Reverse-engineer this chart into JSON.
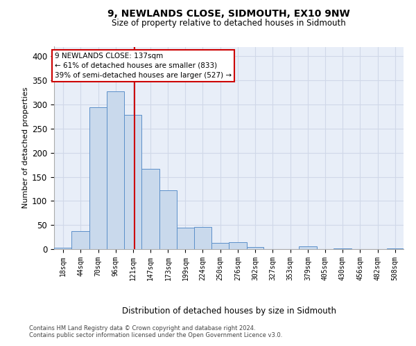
{
  "title": "9, NEWLANDS CLOSE, SIDMOUTH, EX10 9NW",
  "subtitle": "Size of property relative to detached houses in Sidmouth",
  "xlabel": "Distribution of detached houses by size in Sidmouth",
  "ylabel": "Number of detached properties",
  "property_size": 137,
  "bin_edges": [
    18,
    44,
    70,
    96,
    121,
    147,
    173,
    199,
    224,
    250,
    276,
    302,
    327,
    353,
    379,
    405,
    430,
    456,
    482,
    508,
    533
  ],
  "bar_heights": [
    3,
    38,
    295,
    328,
    279,
    167,
    122,
    45,
    46,
    13,
    14,
    4,
    0,
    0,
    6,
    0,
    2,
    0,
    0,
    2
  ],
  "bar_color": "#c9d9ec",
  "bar_edge_color": "#5b8fc9",
  "vline_color": "#cc0000",
  "annotation_text": "9 NEWLANDS CLOSE: 137sqm\n← 61% of detached houses are smaller (833)\n39% of semi-detached houses are larger (527) →",
  "annotation_box_edge": "#cc0000",
  "grid_color": "#d0d8e8",
  "background_color": "#e8eef8",
  "ylim_max": 420,
  "yticks": [
    0,
    50,
    100,
    150,
    200,
    250,
    300,
    350,
    400
  ],
  "footer_line1": "Contains HM Land Registry data © Crown copyright and database right 2024.",
  "footer_line2": "Contains public sector information licensed under the Open Government Licence v3.0."
}
